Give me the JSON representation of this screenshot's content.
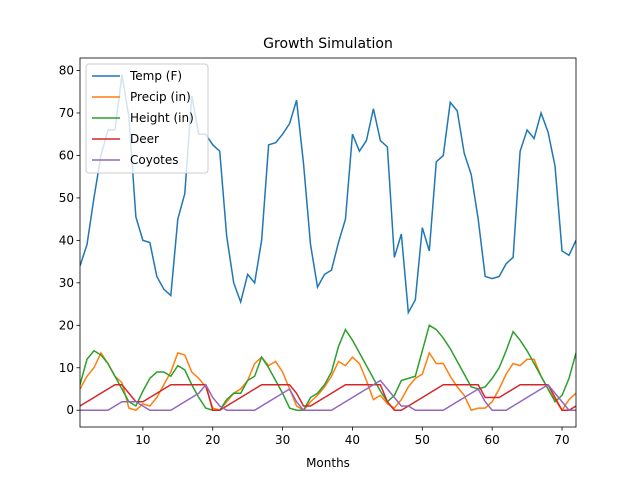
{
  "chart_data": {
    "type": "line",
    "title": "Growth Simulation",
    "x_label": "Months",
    "x": [
      1,
      2,
      3,
      4,
      5,
      6,
      7,
      8,
      9,
      10,
      11,
      12,
      13,
      14,
      15,
      16,
      17,
      18,
      19,
      20,
      21,
      22,
      23,
      24,
      25,
      26,
      27,
      28,
      29,
      30,
      31,
      32,
      33,
      34,
      35,
      36,
      37,
      38,
      39,
      40,
      41,
      42,
      43,
      44,
      45,
      46,
      47,
      48,
      49,
      50,
      51,
      52,
      53,
      54,
      55,
      56,
      57,
      58,
      59,
      60,
      61,
      62,
      63,
      64,
      65,
      66,
      67,
      68,
      69,
      70,
      71,
      72
    ],
    "xlim": [
      1,
      72
    ],
    "xticks": [
      10,
      20,
      30,
      40,
      50,
      60,
      70
    ],
    "ylim": [
      -3.95,
      82.95
    ],
    "yticks": [
      0,
      10,
      20,
      30,
      40,
      50,
      60,
      70,
      80
    ],
    "legend": "upper left",
    "series": [
      {
        "name": "Temp (F)",
        "color": "#1f77b4",
        "values": [
          34,
          39,
          50,
          60,
          66,
          66,
          79,
          69,
          45.5,
          40,
          39.5,
          31.5,
          28.5,
          27,
          45,
          51,
          74,
          65,
          65,
          62.5,
          61,
          41,
          30,
          25.5,
          32,
          30,
          40,
          62.5,
          63,
          65,
          67.5,
          73,
          58,
          39,
          29,
          32,
          33,
          39.5,
          45,
          65,
          61,
          63.5,
          71,
          63.5,
          62,
          36,
          41.5,
          23,
          26,
          43,
          37.5,
          58.5,
          60,
          72.5,
          70.5,
          60.5,
          55.5,
          45,
          31.5,
          31,
          31.5,
          34.5,
          36,
          61,
          66,
          64,
          70,
          65.5,
          57.5,
          37.5,
          36.5,
          40
        ]
      },
      {
        "name": "Precip (in)",
        "color": "#ff7f0e",
        "values": [
          5,
          8,
          10,
          13.5,
          11,
          8,
          6.5,
          0.5,
          0,
          1.5,
          1,
          3,
          6,
          9,
          13.5,
          13,
          9,
          7.5,
          5.5,
          0.5,
          0,
          2,
          4,
          5,
          7,
          11,
          12.5,
          10.5,
          11.5,
          9,
          5,
          1,
          0,
          2,
          3.5,
          5.5,
          8,
          11.5,
          10.5,
          12.5,
          11,
          7,
          2.5,
          3.5,
          1.5,
          0.5,
          2.5,
          5.5,
          7.5,
          8.5,
          13.5,
          11,
          11,
          8,
          5.5,
          3.5,
          0,
          0.5,
          0.5,
          2,
          5,
          8.5,
          11,
          10.5,
          12,
          12,
          8,
          5,
          2.5,
          0,
          2.5,
          4
        ]
      },
      {
        "name": "Height (in)",
        "color": "#2ca02c",
        "values": [
          6,
          12,
          14,
          13,
          11,
          8,
          5,
          2,
          1,
          4.5,
          7.5,
          9,
          9,
          8,
          10.5,
          9.5,
          6,
          3,
          0.5,
          0,
          0,
          2.5,
          4,
          4,
          7,
          8,
          12.5,
          10,
          7,
          4,
          0.5,
          0,
          0,
          3,
          4,
          6,
          9,
          15,
          19,
          16.5,
          13.5,
          10.5,
          7.5,
          4.5,
          2,
          3.5,
          7,
          7.5,
          8,
          14,
          20,
          19,
          17,
          14.5,
          11.5,
          8.5,
          5.5,
          5,
          5.5,
          7.5,
          10,
          14,
          18.5,
          16.5,
          14,
          11,
          8,
          5,
          2,
          3.5,
          7.5,
          13.5
        ]
      },
      {
        "name": "Deer",
        "color": "#d62728",
        "values": [
          1,
          2,
          3,
          4,
          5,
          6,
          6,
          4,
          2,
          2,
          3,
          4,
          5,
          6,
          6,
          6,
          6,
          6,
          6,
          0,
          0,
          1,
          2,
          3,
          4,
          5,
          6,
          6,
          6,
          6,
          6,
          4,
          1,
          1,
          2,
          3,
          4,
          5,
          6,
          6,
          6,
          6,
          6,
          6,
          2,
          0,
          0,
          1,
          2,
          3,
          4,
          5,
          6,
          6,
          6,
          6,
          6,
          6,
          3,
          3,
          3,
          4,
          5,
          6,
          6,
          6,
          6,
          6,
          3,
          0,
          0,
          1
        ]
      },
      {
        "name": "Coyotes",
        "color": "#9467bd",
        "values": [
          0,
          0,
          0,
          0,
          0,
          1,
          2,
          2,
          2,
          1,
          0,
          0,
          0,
          0,
          1,
          2,
          3,
          4,
          6,
          3,
          1,
          0,
          0,
          0,
          0,
          0,
          1,
          2,
          3,
          4,
          5,
          2,
          0,
          0,
          0,
          0,
          0,
          1,
          2,
          3,
          4,
          5,
          6,
          7,
          5,
          3,
          1,
          1,
          0,
          0,
          0,
          0,
          0,
          1,
          2,
          3,
          4,
          5,
          2,
          0,
          0,
          0,
          1,
          2,
          3,
          4,
          5,
          6,
          4,
          2,
          0,
          0
        ]
      }
    ]
  }
}
